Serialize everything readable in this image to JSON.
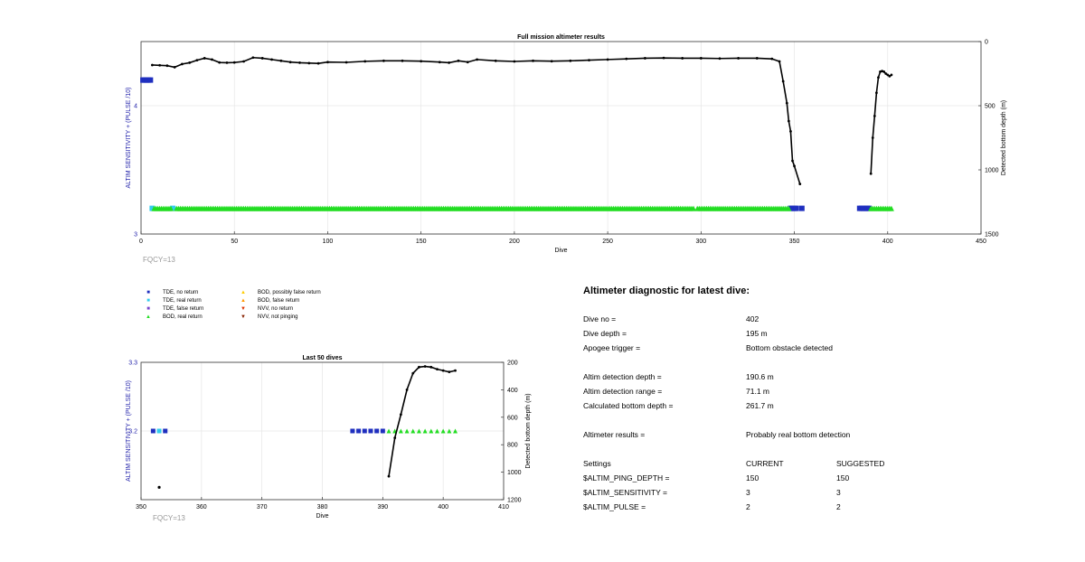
{
  "chart_data": [
    {
      "type": "scatter",
      "title": "Full mission altimeter results",
      "xlabel": "Dive",
      "ylabel": "ALTIM SENSITIVITY + (PULSE /10)",
      "y2label": "Detected bottom depth (m)",
      "xlim": [
        0,
        450
      ],
      "ylim": [
        3,
        4.5
      ],
      "y2lim": [
        0,
        1500
      ],
      "y2_reversed": true,
      "xticks": [
        "0",
        "50",
        "100",
        "150",
        "200",
        "250",
        "300",
        "350",
        "400",
        "450"
      ],
      "yticks": [
        "3",
        "4"
      ],
      "y2ticks": [
        "0",
        "500",
        "1000",
        "1500"
      ],
      "grid": true,
      "annotation": "FQCY=13",
      "series": [
        {
          "name": "TDE, no return",
          "marker": "square",
          "color": "#1f2fbf",
          "axis": "left",
          "points": [
            [
              1,
              4.2
            ],
            [
              2,
              4.2
            ],
            [
              3,
              4.2
            ],
            [
              4,
              4.2
            ],
            [
              5,
              4.2
            ],
            [
              348,
              3.2
            ],
            [
              349,
              3.2
            ],
            [
              350,
              3.2
            ],
            [
              351,
              3.2
            ],
            [
              354,
              3.2
            ],
            [
              385,
              3.2
            ],
            [
              386,
              3.2
            ],
            [
              387,
              3.2
            ],
            [
              388,
              3.2
            ],
            [
              389,
              3.2
            ],
            [
              390,
              3.2
            ]
          ]
        },
        {
          "name": "TDE, real return",
          "marker": "square",
          "color": "#33ccee",
          "axis": "left",
          "points": [
            [
              6,
              3.2
            ],
            [
              17,
              3.2
            ]
          ]
        },
        {
          "name": "BOD, real return",
          "marker": "triangle",
          "color": "#22dd22",
          "axis": "left",
          "ranges": [
            [
              7,
              16,
              3.2
            ],
            [
              19,
              296,
              3.2
            ],
            [
              298,
              347,
              3.2
            ],
            [
              391,
              402,
              3.2
            ]
          ]
        },
        {
          "name": "Detected bottom depth",
          "marker": "dot-line",
          "color": "#000000",
          "axis": "right",
          "points": [
            [
              6,
              183
            ],
            [
              10,
              185
            ],
            [
              14,
              188
            ],
            [
              18,
              200
            ],
            [
              22,
              175
            ],
            [
              26,
              165
            ],
            [
              30,
              145
            ],
            [
              34,
              130
            ],
            [
              38,
              140
            ],
            [
              42,
              163
            ],
            [
              46,
              165
            ],
            [
              50,
              163
            ],
            [
              55,
              155
            ],
            [
              60,
              125
            ],
            [
              65,
              130
            ],
            [
              70,
              140
            ],
            [
              75,
              150
            ],
            [
              80,
              160
            ],
            [
              85,
              165
            ],
            [
              90,
              168
            ],
            [
              95,
              170
            ],
            [
              100,
              160
            ],
            [
              110,
              162
            ],
            [
              120,
              154
            ],
            [
              130,
              150
            ],
            [
              140,
              150
            ],
            [
              150,
              153
            ],
            [
              160,
              160
            ],
            [
              165,
              165
            ],
            [
              170,
              150
            ],
            [
              175,
              160
            ],
            [
              180,
              140
            ],
            [
              190,
              150
            ],
            [
              200,
              155
            ],
            [
              210,
              150
            ],
            [
              220,
              153
            ],
            [
              230,
              150
            ],
            [
              240,
              145
            ],
            [
              250,
              140
            ],
            [
              260,
              135
            ],
            [
              270,
              130
            ],
            [
              280,
              128
            ],
            [
              290,
              130
            ],
            [
              300,
              130
            ],
            [
              310,
              132
            ],
            [
              320,
              130
            ],
            [
              330,
              130
            ],
            [
              338,
              135
            ],
            [
              342,
              155
            ],
            [
              344,
              310
            ],
            [
              346,
              480
            ],
            [
              347,
              620
            ],
            [
              348,
              700
            ],
            [
              349,
              930
            ],
            [
              350,
              970
            ],
            [
              353,
              1110
            ],
            [
              391,
              1030
            ],
            [
              392,
              750
            ],
            [
              393,
              580
            ],
            [
              394,
              400
            ],
            [
              395,
              280
            ],
            [
              396,
              235
            ],
            [
              397,
              230
            ],
            [
              398,
              235
            ],
            [
              399,
              250
            ],
            [
              400,
              260
            ],
            [
              401,
              270
            ],
            [
              402,
              260
            ]
          ]
        }
      ]
    },
    {
      "type": "scatter",
      "title": "Last 50 dives",
      "xlabel": "Dive",
      "ylabel": "ALTIM SENSITIVITY + (PULSE /10)",
      "y2label": "Detected bottom depth (m)",
      "xlim": [
        350,
        410
      ],
      "ylim": [
        3.1,
        3.3
      ],
      "y2lim": [
        200,
        1200
      ],
      "y2_reversed": true,
      "xticks": [
        "350",
        "360",
        "370",
        "380",
        "390",
        "400",
        "410"
      ],
      "yticks": [
        "3.2",
        "3.3"
      ],
      "y2ticks": [
        "200",
        "400",
        "600",
        "800",
        "1000",
        "1200"
      ],
      "grid": true,
      "annotation": "FQCY=13",
      "series": [
        {
          "name": "TDE, no return",
          "marker": "square",
          "color": "#1f2fbf",
          "axis": "left",
          "points": [
            [
              352,
              3.2
            ],
            [
              354,
              3.2
            ],
            [
              385,
              3.2
            ],
            [
              386,
              3.2
            ],
            [
              387,
              3.2
            ],
            [
              388,
              3.2
            ],
            [
              389,
              3.2
            ],
            [
              390,
              3.2
            ]
          ]
        },
        {
          "name": "TDE, real return",
          "marker": "square",
          "color": "#33ccee",
          "axis": "left",
          "points": [
            [
              353,
              3.2
            ]
          ]
        },
        {
          "name": "BOD, real return",
          "marker": "triangle",
          "color": "#22dd22",
          "axis": "left",
          "points": [
            [
              391,
              3.2
            ],
            [
              392,
              3.2
            ],
            [
              393,
              3.2
            ],
            [
              394,
              3.2
            ],
            [
              395,
              3.2
            ],
            [
              396,
              3.2
            ],
            [
              397,
              3.2
            ],
            [
              398,
              3.2
            ],
            [
              399,
              3.2
            ],
            [
              400,
              3.2
            ],
            [
              401,
              3.2
            ],
            [
              402,
              3.2
            ]
          ]
        },
        {
          "name": "Detected bottom depth",
          "marker": "dot-line",
          "color": "#000000",
          "axis": "right",
          "points": [
            [
              391,
              1030
            ],
            [
              392,
              750
            ],
            [
              393,
              580
            ],
            [
              394,
              400
            ],
            [
              395,
              280
            ],
            [
              396,
              235
            ],
            [
              397,
              230
            ],
            [
              398,
              235
            ],
            [
              399,
              250
            ],
            [
              400,
              260
            ],
            [
              401,
              270
            ],
            [
              402,
              260
            ]
          ]
        },
        {
          "name": "Detected bottom depth (isolated)",
          "marker": "dot",
          "color": "#000000",
          "axis": "right",
          "points": [
            [
              353,
              1110
            ]
          ]
        }
      ]
    }
  ],
  "legend": {
    "left": [
      {
        "label": "TDE, no return",
        "symbol": "■",
        "color": "#1f2fbf"
      },
      {
        "label": "TDE, real return",
        "symbol": "■",
        "color": "#33ccee"
      },
      {
        "label": "TDE, false return",
        "symbol": "■",
        "color": "#7744cc"
      },
      {
        "label": "BOD, real return",
        "symbol": "▲",
        "color": "#22dd22"
      }
    ],
    "right": [
      {
        "label": "BOD, possibly false return",
        "symbol": "▲",
        "color": "#ffcc00"
      },
      {
        "label": "BOD, false return",
        "symbol": "▲",
        "color": "#ff9900"
      },
      {
        "label": "NVV, no return",
        "symbol": "▼",
        "color": "#dd3300"
      },
      {
        "label": "NVV, not pinging",
        "symbol": "▼",
        "color": "#882200"
      }
    ]
  },
  "diagnostic": {
    "title": "Altimeter diagnostic for latest dive:",
    "rows": [
      {
        "label": "Dive no =",
        "value": "402"
      },
      {
        "label": "Dive depth =",
        "value": "195 m"
      },
      {
        "label": "Apogee trigger =",
        "value": "Bottom obstacle detected"
      },
      {
        "label": "Altim detection depth =",
        "value": "190.6 m"
      },
      {
        "label": "Altim detection range =",
        "value": "71.1 m"
      },
      {
        "label": "Calculated bottom depth =",
        "value": "261.7 m"
      },
      {
        "label": "Altimeter results =",
        "value": "Probably real bottom detection"
      }
    ],
    "settings": {
      "header": {
        "label": "Settings",
        "current": "CURRENT",
        "suggested": "SUGGESTED"
      },
      "rows": [
        {
          "label": "$ALTIM_PING_DEPTH =",
          "current": "150",
          "suggested": "150"
        },
        {
          "label": "$ALTIM_SENSITIVITY =",
          "current": "3",
          "suggested": "3"
        },
        {
          "label": "$ALTIM_PULSE =",
          "current": "2",
          "suggested": "2"
        }
      ]
    }
  },
  "colors": {
    "axis_label": "#2222aa",
    "grid": "#e6e6e6",
    "annotation": "#999999"
  }
}
